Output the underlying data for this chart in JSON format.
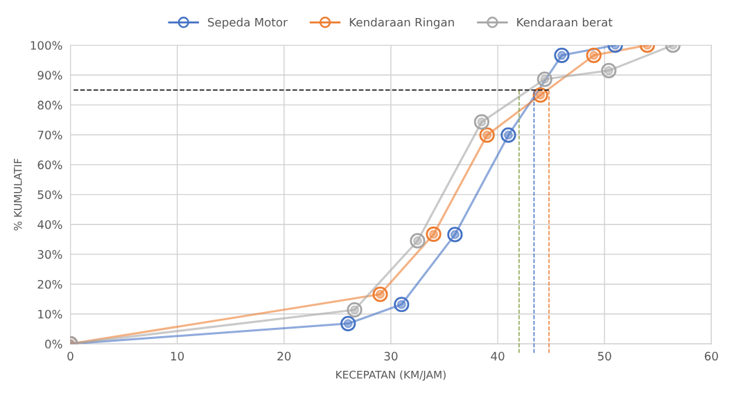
{
  "chart_data": {
    "type": "line",
    "xlabel": "KECEPATAN (KM/JAM)",
    "ylabel": "% KUMULATIF",
    "xlim": [
      0,
      60
    ],
    "xticks": [
      0,
      10,
      20,
      30,
      40,
      50,
      60
    ],
    "ylim": [
      0,
      100
    ],
    "yticks": [
      {
        "value": 0,
        "label": "0%"
      },
      {
        "value": 10,
        "label": "10%"
      },
      {
        "value": 20,
        "label": "20%"
      },
      {
        "value": 30,
        "label": "30%"
      },
      {
        "value": 40,
        "label": "40%"
      },
      {
        "value": 50,
        "label": "50%"
      },
      {
        "value": 60,
        "label": "60%"
      },
      {
        "value": 70,
        "label": "70%"
      },
      {
        "value": 80,
        "label": "80%"
      },
      {
        "value": 90,
        "label": "90%"
      },
      {
        "value": 100,
        "label": "100%"
      }
    ],
    "grid": true,
    "legend": "top",
    "marker": "circle",
    "line_style": "solid",
    "series": [
      {
        "name": "Sepeda Motor",
        "color": "#4472c4",
        "x": [
          0,
          26,
          31,
          36,
          41,
          46,
          51
        ],
        "values": [
          0,
          6.8,
          13.2,
          36.6,
          69.9,
          96.6,
          100
        ]
      },
      {
        "name": "Kendaraan Ringan",
        "color": "#ed7d31",
        "x": [
          0,
          29,
          34,
          39,
          44,
          49,
          54
        ],
        "values": [
          0,
          16.6,
          36.7,
          69.9,
          83.3,
          96.6,
          100
        ]
      },
      {
        "name": "Kendaraan berat",
        "color": "#a5a5a5",
        "x": [
          0,
          26.6,
          32.5,
          38.5,
          44.4,
          50.4,
          56.4
        ],
        "values": [
          0,
          11.4,
          34.5,
          74.3,
          88.6,
          91.5,
          100
        ]
      }
    ],
    "ref_lines": [
      {
        "axis": "y",
        "value": 85,
        "color": "#222222",
        "line_style": "dashed"
      },
      {
        "axis": "x",
        "value": 42.0,
        "color": "#8aa04a",
        "line_style": "dashed"
      },
      {
        "axis": "x",
        "value": 43.4,
        "color": "#4472c4",
        "line_style": "dashed"
      },
      {
        "axis": "x",
        "value": 44.8,
        "color": "#ed7d31",
        "line_style": "dashed"
      }
    ]
  }
}
